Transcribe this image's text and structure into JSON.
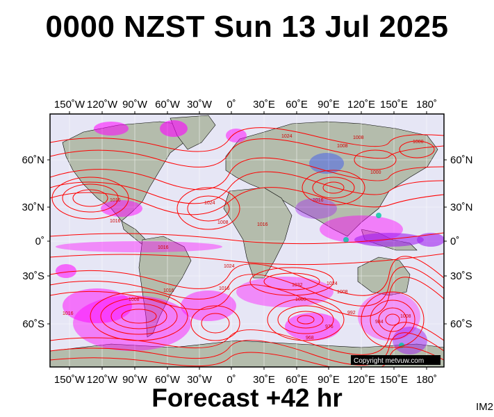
{
  "header": {
    "title": "0000 NZST Sun 13 Jul 2025"
  },
  "footer": {
    "forecast": "Forecast +42 hr",
    "image_code": "IM2"
  },
  "map": {
    "copyright": "Copyright metvuw.com",
    "lon_labels": [
      "150˚W",
      "120˚W",
      "90˚W",
      "60˚W",
      "30˚W",
      "0˚",
      "30˚E",
      "60˚E",
      "90˚E",
      "120˚E",
      "150˚E",
      "180˚"
    ],
    "lat_labels": [
      "60˚N",
      "30˚N",
      "0˚",
      "30˚S",
      "60˚S"
    ],
    "isobar_labels": [
      "1024",
      "1008",
      "1008",
      "1000",
      "1000",
      "1016",
      "1016",
      "1016",
      "1008",
      "1016",
      "1024",
      "1016",
      "1016",
      "1024",
      "1032",
      "1024",
      "1008",
      "1000",
      "992",
      "976",
      "968",
      "984",
      "1008",
      "1016",
      "1016",
      "1008"
    ],
    "colors": {
      "ocean": "#e6e6f5",
      "land": "#b4bcac",
      "isobar": "#ff0000",
      "rain_light": "#ff00ff",
      "rain_medium": "#a020f0",
      "rain_heavy": "#2040ff",
      "rain_extreme": "#00c8a0",
      "grid": "#ffffff"
    }
  }
}
